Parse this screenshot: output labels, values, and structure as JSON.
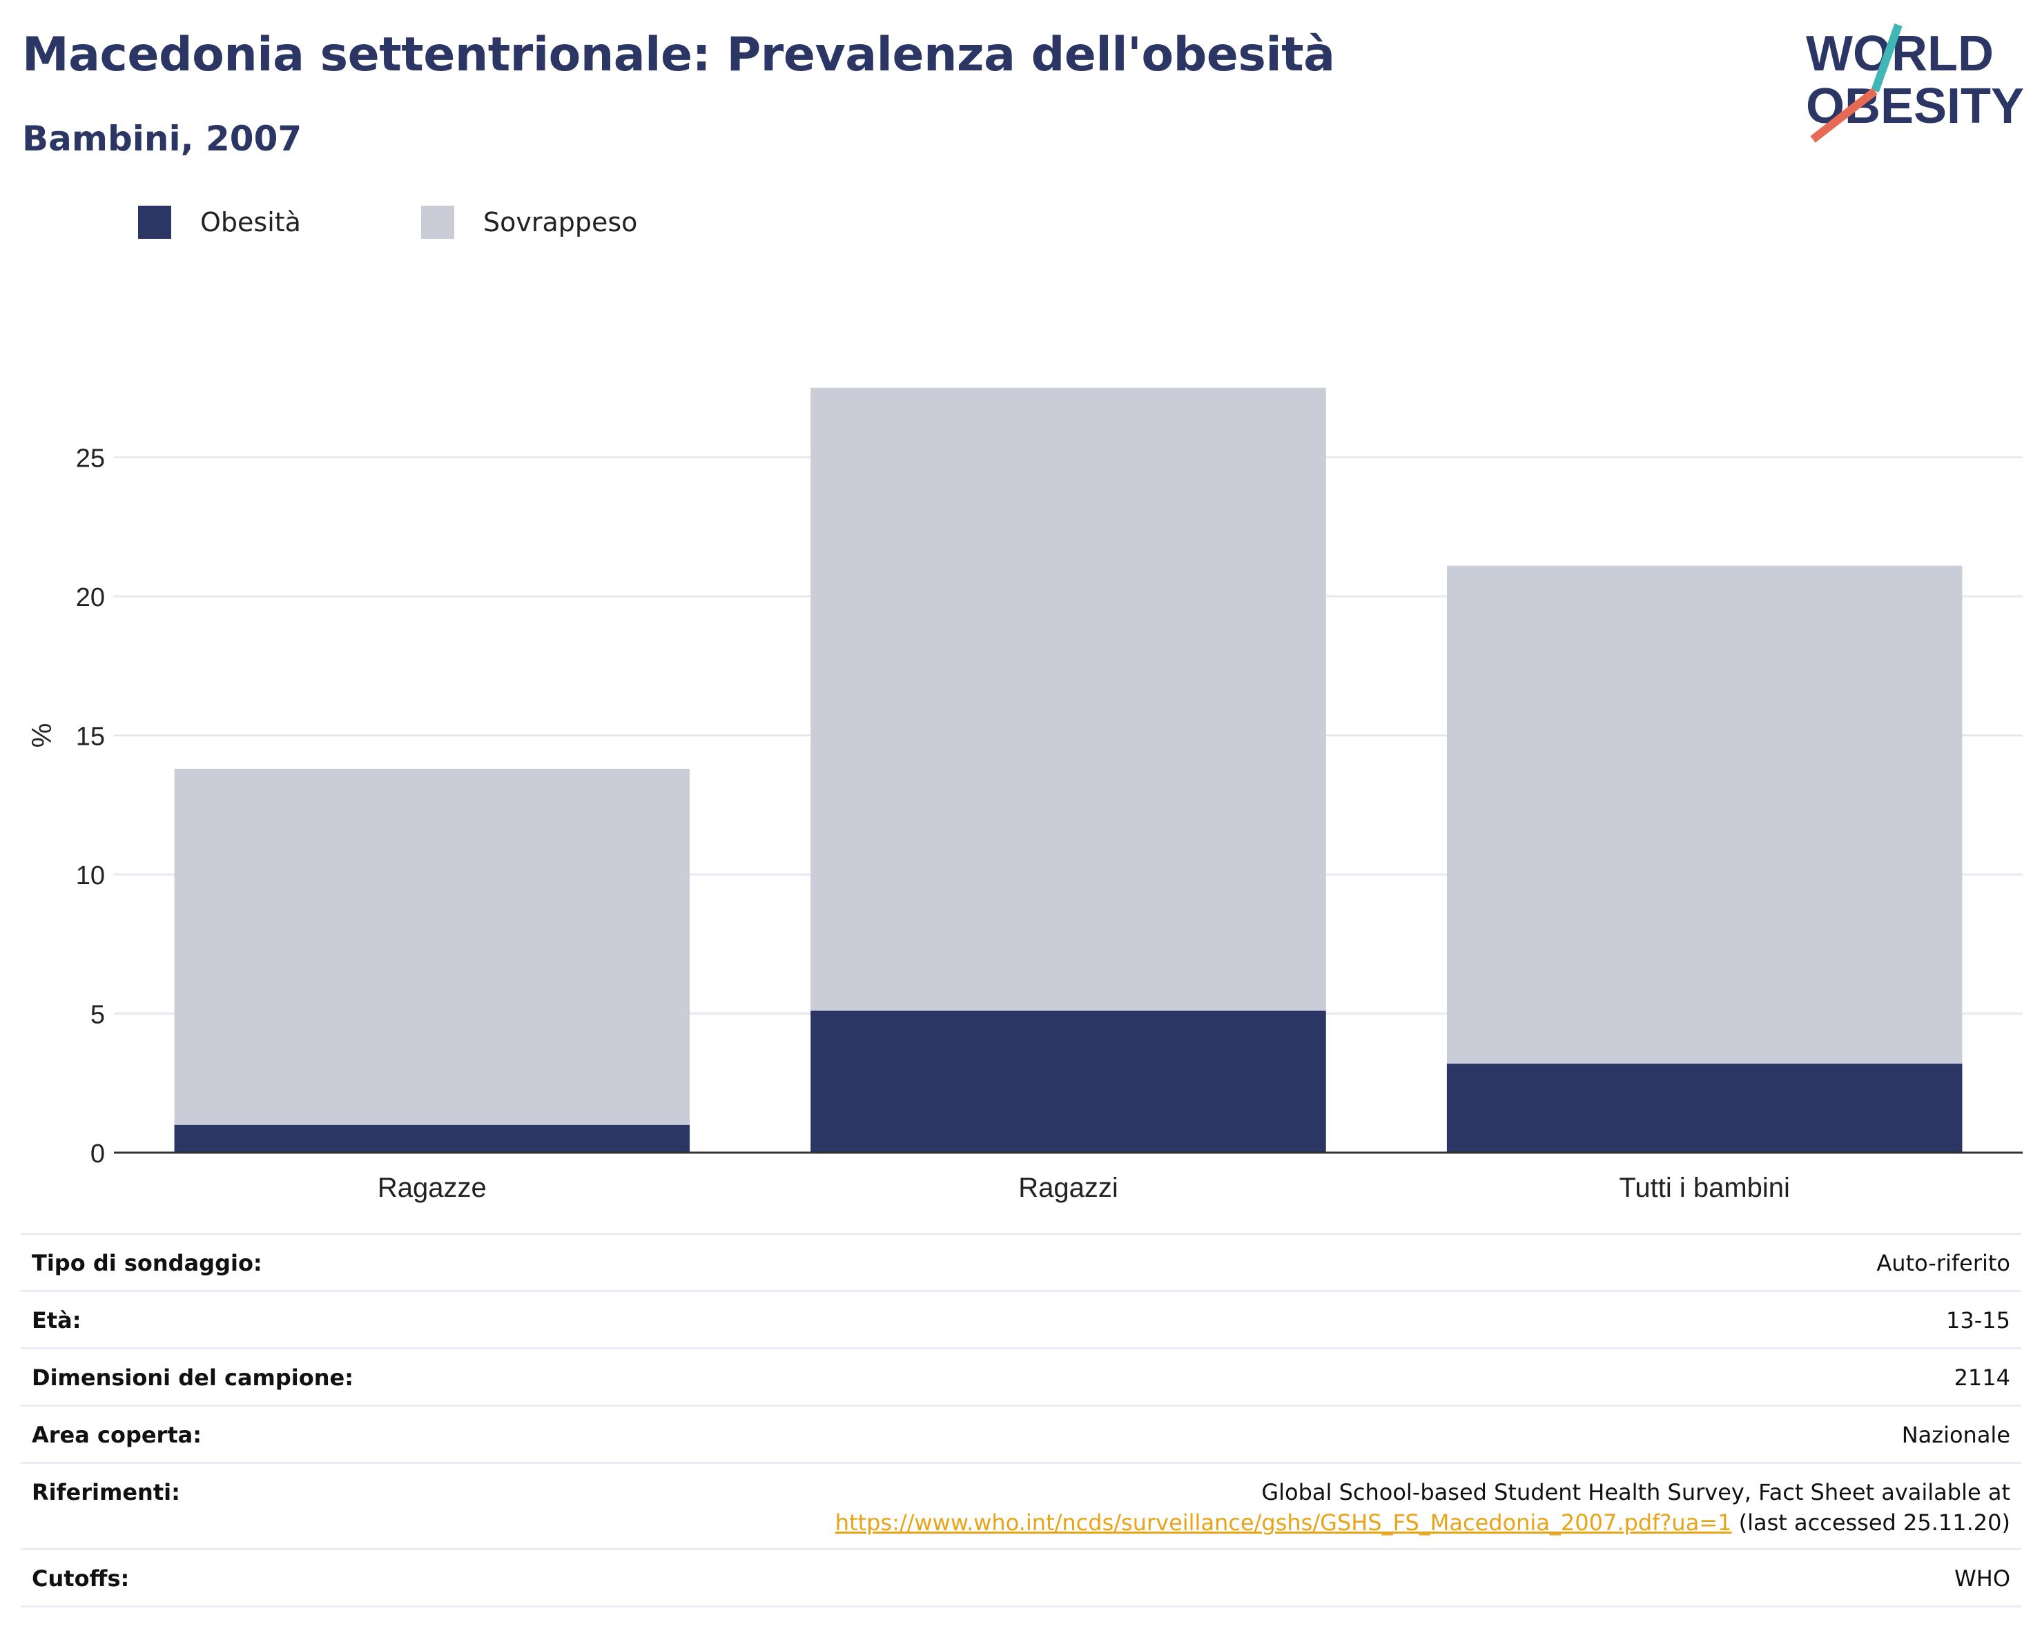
{
  "header": {
    "title": "Macedonia settentrionale: Prevalenza dell'obesità",
    "subtitle": "Bambini, 2007"
  },
  "logo": {
    "line1": "WORLD",
    "line2": "OBESITY"
  },
  "colors": {
    "obesity": "#2b3664",
    "overweight": "#cacdd8",
    "title": "#2b3664",
    "logo_slash_teal": "#3fb8b5",
    "logo_slash_red": "#e76a55",
    "link": "#e8a317"
  },
  "chart_data": {
    "type": "bar",
    "stacked": true,
    "categories": [
      "Ragazze",
      "Ragazzi",
      "Tutti i bambini"
    ],
    "series": [
      {
        "name": "Obesità",
        "values": [
          1.0,
          5.1,
          3.2
        ]
      },
      {
        "name": "Sovrappeso",
        "values": [
          12.8,
          22.4,
          17.9
        ]
      }
    ],
    "ylabel": "%",
    "ylim": [
      0,
      30
    ],
    "yticks": [
      0,
      5,
      10,
      15,
      20,
      25
    ],
    "grid": true,
    "legend_position": "top-left"
  },
  "info_table": {
    "rows": [
      {
        "label": "Tipo di sondaggio:",
        "value": "Auto-riferito"
      },
      {
        "label": "Età:",
        "value": "13-15"
      },
      {
        "label": "Dimensioni del campione:",
        "value": "2114"
      },
      {
        "label": "Area coperta:",
        "value": "Nazionale"
      },
      {
        "label": "Riferimenti:",
        "value_line1": "Global School-based Student Health Survey, Fact Sheet available at",
        "link": "https://www.who.int/ncds/surveillance/gshs/GSHS_FS_Macedonia_2007.pdf?ua=1",
        "value_suffix": " (last accessed 25.11.20)"
      },
      {
        "label": "Cutoffs:",
        "value": "WHO"
      }
    ]
  }
}
